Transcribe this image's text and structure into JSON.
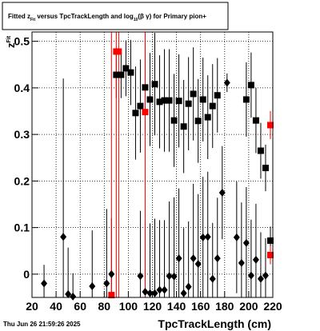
{
  "chart_data": {
    "type": "scatter",
    "title_parts": [
      "Fitted  z",
      "Fit",
      "  versus TpcTrackLength and log",
      "10",
      "(β  γ) for Primary pion+"
    ],
    "ylabel_parts": [
      "z",
      "Fit"
    ],
    "xlabel": "TpcTrackLength (cm)",
    "timestamp": "Thu Jun 26 21:59:26 2025",
    "xlim": [
      20,
      220
    ],
    "ylim": [
      -0.05,
      0.52
    ],
    "xticks": [
      20,
      40,
      60,
      80,
      100,
      120,
      140,
      160,
      180,
      200,
      220
    ],
    "yticks": [
      0,
      0.1,
      0.2,
      0.3,
      0.4,
      {
        "value": 0.5,
        "label": "0.5"
      }
    ],
    "grid": true,
    "series": [
      {
        "color": "#000000",
        "marker": "diamond",
        "x": [
          30,
          46,
          50,
          54,
          70,
          82,
          86,
          110,
          114,
          118,
          122,
          126,
          130,
          134,
          138,
          142,
          146,
          150,
          154,
          158,
          162,
          166,
          170,
          174,
          178,
          182,
          190,
          194,
          198,
          202,
          206,
          210,
          214
        ],
        "values": [
          -0.02,
          0.08,
          -0.043,
          -0.048,
          -0.026,
          -0.02,
          0.0,
          -0.004,
          -0.038,
          -0.041,
          -0.041,
          -0.034,
          -0.034,
          -0.004,
          -0.005,
          0.034,
          -0.041,
          -0.027,
          0.034,
          0.022,
          0.079,
          0.08,
          -0.01,
          0.034,
          0.175,
          0.411,
          0.079,
          0.024,
          0.067,
          -0.003,
          0.031,
          -0.01,
          -0.003
        ],
        "errors": [
          0.04,
          0.34,
          0.1,
          0.05,
          0.12,
          0.16,
          0.12,
          0.14,
          0.15,
          0.15,
          0.16,
          0.15,
          0.15,
          0.16,
          0.17,
          0.15,
          0.14,
          0.14,
          0.16,
          0.15,
          0.13,
          0.14,
          0.12,
          0.13,
          0.1,
          0.02,
          0.12,
          0.13,
          0.12,
          0.12,
          0.12,
          0.1,
          0.08
        ]
      },
      {
        "color": "#000000",
        "marker": "square",
        "x": [
          90,
          94,
          98,
          102,
          106,
          110,
          114,
          118,
          122,
          126,
          130,
          134,
          138,
          142,
          146,
          150,
          154,
          158,
          162,
          166,
          170,
          174,
          198,
          202,
          206,
          210,
          214,
          218
        ],
        "values": [
          0.428,
          0.428,
          0.442,
          0.433,
          0.346,
          0.361,
          0.401,
          0.375,
          0.408,
          0.37,
          0.373,
          0.373,
          0.33,
          0.372,
          0.317,
          0.366,
          0.387,
          0.329,
          0.375,
          0.337,
          0.361,
          0.384,
          0.375,
          0.406,
          0.33,
          0.265,
          0.228,
          0.072
        ],
        "errors": [
          0.05,
          0.05,
          0.06,
          0.07,
          0.1,
          0.1,
          0.1,
          0.1,
          0.11,
          0.1,
          0.11,
          0.11,
          0.1,
          0.1,
          0.1,
          0.1,
          0.1,
          0.09,
          0.09,
          0.09,
          0.09,
          0.08,
          0.08,
          0.07,
          0.07,
          0.06,
          0.05,
          0.03
        ]
      },
      {
        "color": "#ff0000",
        "marker": "square",
        "x": [
          86,
          90,
          92,
          114,
          218,
          218
        ],
        "values": [
          -0.045,
          0.478,
          0.478,
          0.348,
          0.32,
          0.041
        ],
        "errors": [
          0.6,
          0.6,
          0.6,
          0.6,
          0.03,
          0.02
        ]
      }
    ]
  }
}
